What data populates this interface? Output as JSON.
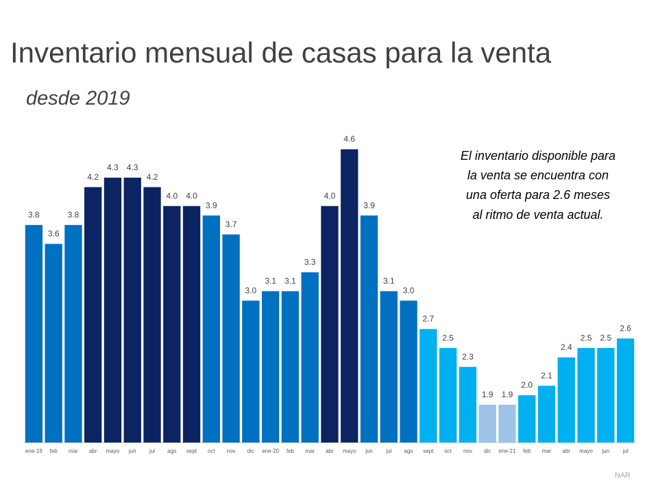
{
  "chart_data": {
    "type": "bar",
    "title": "Inventario mensual de casas para la venta",
    "subtitle": "desde 2019",
    "annotation": [
      "El inventario disponible para",
      "la venta se encuentra con",
      "una oferta para 2.6 meses",
      "al ritmo de venta actual."
    ],
    "source": "NAR",
    "categories": [
      "ene-19",
      "feb",
      "mar",
      "abr",
      "mayo",
      "jun",
      "jul",
      "ago",
      "sept",
      "oct",
      "nov",
      "dic",
      "ene-20",
      "feb",
      "mar",
      "abr",
      "mayo",
      "jun",
      "jul",
      "ago",
      "sept",
      "oct",
      "nov",
      "dic",
      "ene-21",
      "feb",
      "mar",
      "abr",
      "mayo",
      "jun",
      "jul"
    ],
    "values": [
      3.8,
      3.6,
      3.8,
      4.2,
      4.3,
      4.3,
      4.2,
      4.0,
      4.0,
      3.9,
      3.7,
      3.0,
      3.1,
      3.1,
      3.3,
      4.0,
      4.6,
      3.9,
      3.1,
      3.0,
      2.7,
      2.5,
      2.3,
      1.9,
      1.9,
      2.0,
      2.1,
      2.4,
      2.5,
      2.5,
      2.6
    ],
    "value_labels": [
      "3.8",
      "3.6",
      "3.8",
      "4.2",
      "4.3",
      "4.3",
      "4.2",
      "4.0",
      "4.0",
      "3.9",
      "3.7",
      "3.0",
      "3.1",
      "3.1",
      "3.3",
      "4.0",
      "4.6",
      "3.9",
      "3.1",
      "3.0",
      "2.7",
      "2.5",
      "2.3",
      "1.9",
      "1.9",
      "2.0",
      "2.1",
      "2.4",
      "2.5",
      "2.5",
      "2.6"
    ],
    "colors": [
      "#0070c0",
      "#0070c0",
      "#0070c0",
      "#0c2461",
      "#0c2461",
      "#0c2461",
      "#0c2461",
      "#0c2461",
      "#0c2461",
      "#0070c0",
      "#0070c0",
      "#0070c0",
      "#0070c0",
      "#0070c0",
      "#0070c0",
      "#0c2461",
      "#0c2461",
      "#0070c0",
      "#0070c0",
      "#0070c0",
      "#00b0f0",
      "#00b0f0",
      "#00b0f0",
      "#9dc3e6",
      "#9dc3e6",
      "#00b0f0",
      "#00b0f0",
      "#00b0f0",
      "#00b0f0",
      "#00b0f0",
      "#00b0f0"
    ],
    "ylim": [
      1.5,
      4.8
    ]
  }
}
